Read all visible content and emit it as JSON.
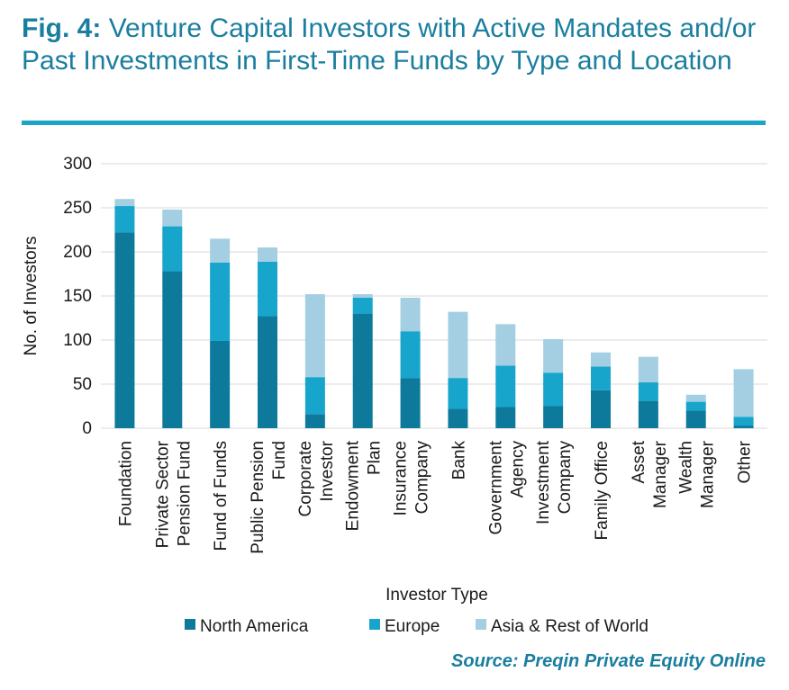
{
  "figure": {
    "label": "Fig. 4:",
    "title": "Venture Capital Investors with Active Mandates and/or Past Investments in First-Time Funds by Type and Location",
    "source": "Source: Preqin Private Equity Online"
  },
  "colors": {
    "title": "#1a7e9f",
    "rule": "#1ba5c8",
    "north_america": "#0d7a9c",
    "europe": "#18a5cc",
    "asia_rest": "#a4cfe2",
    "grid": "#d9d9d9"
  },
  "chart_data": {
    "type": "bar",
    "stacked": true,
    "title": "",
    "xlabel": "Investor Type",
    "ylabel": "No. of Investors",
    "ylim": [
      0,
      300
    ],
    "yticks": [
      0,
      50,
      100,
      150,
      200,
      250,
      300
    ],
    "grid": true,
    "legend_position": "bottom",
    "categories": [
      [
        "Foundation"
      ],
      [
        "Private Sector",
        "Pension Fund"
      ],
      [
        "Fund of Funds"
      ],
      [
        "Public Pension",
        "Fund"
      ],
      [
        "Corporate",
        "Investor"
      ],
      [
        "Endowment",
        "Plan"
      ],
      [
        "Insurance",
        "Company"
      ],
      [
        "Bank"
      ],
      [
        "Government",
        "Agency"
      ],
      [
        "Investment",
        "Company"
      ],
      [
        "Family Office"
      ],
      [
        "Asset",
        "Manager"
      ],
      [
        "Wealth",
        "Manager"
      ],
      [
        "Other"
      ]
    ],
    "series": [
      {
        "name": "North America",
        "color_key": "north_america",
        "values": [
          222,
          178,
          99,
          127,
          16,
          130,
          57,
          22,
          24,
          25,
          43,
          31,
          20,
          3
        ]
      },
      {
        "name": "Europe",
        "color_key": "europe",
        "values": [
          30,
          51,
          89,
          62,
          42,
          18,
          53,
          35,
          47,
          38,
          27,
          21,
          10,
          10
        ]
      },
      {
        "name": "Asia & Rest of World",
        "color_key": "asia_rest",
        "values": [
          8,
          19,
          27,
          16,
          94,
          4,
          38,
          75,
          47,
          38,
          16,
          29,
          8,
          54
        ]
      }
    ]
  }
}
